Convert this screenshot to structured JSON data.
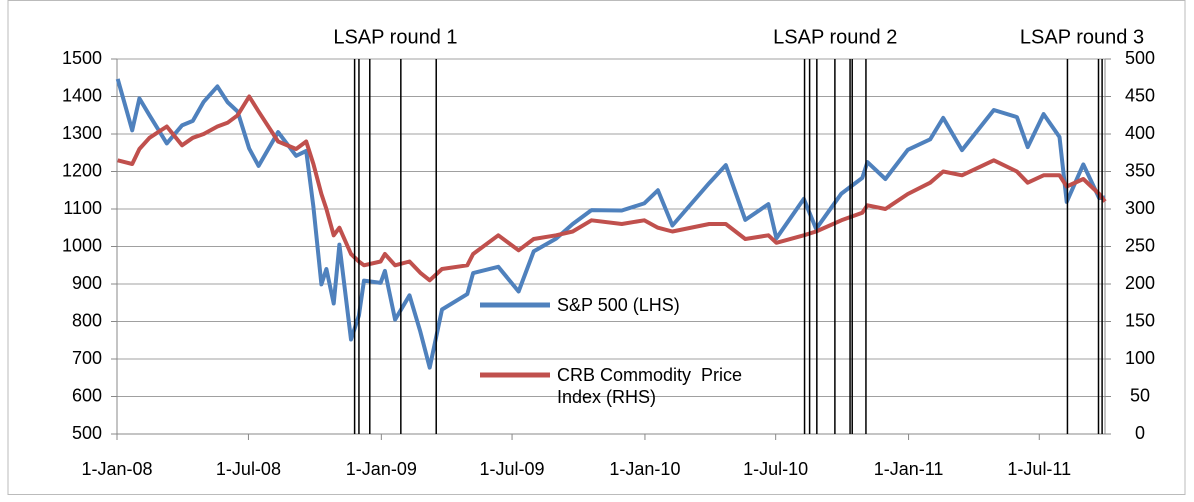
{
  "chart_data": {
    "type": "line",
    "annotations": [
      {
        "text": "LSAP round 1",
        "dates": [
          "2008-11-25",
          "2008-12-01",
          "2008-12-16",
          "2009-01-28",
          "2009-03-18"
        ]
      },
      {
        "text": "LSAP round 2",
        "dates": [
          "2010-08-10",
          "2010-08-17",
          "2010-08-27",
          "2010-09-21",
          "2010-10-12",
          "2010-10-15",
          "2010-11-03"
        ]
      },
      {
        "text": "LSAP round 3",
        "dates": [
          "2011-08-09",
          "2011-09-21",
          "2011-09-26"
        ]
      }
    ],
    "x": [
      "2008-01-02",
      "2008-01-22",
      "2008-02-01",
      "2008-02-15",
      "2008-03-10",
      "2008-03-31",
      "2008-04-15",
      "2008-04-30",
      "2008-05-19",
      "2008-06-02",
      "2008-06-16",
      "2008-07-02",
      "2008-07-15",
      "2008-08-11",
      "2008-09-05",
      "2008-09-19",
      "2008-09-29",
      "2008-10-10",
      "2008-10-17",
      "2008-10-27",
      "2008-11-04",
      "2008-11-20",
      "2008-12-01",
      "2008-12-08",
      "2008-12-31",
      "2009-01-06",
      "2009-01-20",
      "2009-02-09",
      "2009-02-24",
      "2009-03-09",
      "2009-03-26",
      "2009-04-30",
      "2009-05-08",
      "2009-06-12",
      "2009-07-10",
      "2009-07-31",
      "2009-08-31",
      "2009-09-23",
      "2009-10-19",
      "2009-11-30",
      "2009-12-31",
      "2010-01-19",
      "2010-02-08",
      "2010-03-31",
      "2010-04-23",
      "2010-05-20",
      "2010-06-21",
      "2010-07-02",
      "2010-08-09",
      "2010-08-26",
      "2010-09-30",
      "2010-10-29",
      "2010-11-05",
      "2010-11-30",
      "2010-12-31",
      "2011-01-31",
      "2011-02-18",
      "2011-03-16",
      "2011-04-29",
      "2011-05-31",
      "2011-06-15",
      "2011-07-07",
      "2011-07-29",
      "2011-08-08",
      "2011-08-31",
      "2011-09-22",
      "2011-09-30"
    ],
    "series": [
      {
        "name": "S&P 500 (LHS)",
        "color": "#4f81bd",
        "values": [
          1447,
          1310,
          1395,
          1350,
          1275,
          1323,
          1335,
          1386,
          1427,
          1385,
          1360,
          1261,
          1215,
          1305,
          1242,
          1255,
          1106,
          899,
          940,
          848,
          1005,
          752,
          816,
          909,
          903,
          935,
          805,
          870,
          773,
          677,
          832,
          873,
          929,
          946,
          880,
          987,
          1021,
          1060,
          1097,
          1096,
          1115,
          1150,
          1056,
          1169,
          1217,
          1071,
          1113,
          1022,
          1127,
          1047,
          1141,
          1183,
          1225,
          1180,
          1258,
          1286,
          1343,
          1257,
          1364,
          1345,
          1265,
          1353,
          1292,
          1119,
          1219,
          1129,
          1131
        ]
      },
      {
        "name": "CRB Commodity  Price Index (RHS)",
        "color": "#c0504d",
        "axis": "y2",
        "values": [
          365,
          360,
          380,
          395,
          410,
          385,
          395,
          400,
          410,
          415,
          425,
          450,
          430,
          390,
          380,
          390,
          360,
          320,
          300,
          265,
          275,
          240,
          230,
          225,
          230,
          240,
          225,
          230,
          215,
          205,
          220,
          225,
          240,
          265,
          245,
          260,
          265,
          270,
          285,
          280,
          285,
          275,
          270,
          280,
          280,
          260,
          265,
          255,
          265,
          270,
          285,
          295,
          305,
          300,
          320,
          335,
          350,
          345,
          365,
          350,
          335,
          345,
          345,
          330,
          340,
          320,
          310
        ]
      }
    ],
    "xlim": [
      "2008-01-01",
      "2011-09-30"
    ],
    "xticks": [
      {
        "value": "2008-01-01",
        "label": "1-Jan-08"
      },
      {
        "value": "2008-07-01",
        "label": "1-Jul-08"
      },
      {
        "value": "2009-01-01",
        "label": "1-Jan-09"
      },
      {
        "value": "2009-07-01",
        "label": "1-Jul-09"
      },
      {
        "value": "2010-01-01",
        "label": "1-Jan-10"
      },
      {
        "value": "2010-07-01",
        "label": "1-Jul-10"
      },
      {
        "value": "2011-01-01",
        "label": "1-Jan-11"
      },
      {
        "value": "2011-07-01",
        "label": "1-Jul-11"
      }
    ],
    "ylim": [
      500,
      1500
    ],
    "yticks": [
      500,
      600,
      700,
      800,
      900,
      1000,
      1100,
      1200,
      1300,
      1400,
      1500
    ],
    "y2lim": [
      0,
      500
    ],
    "y2ticks": [
      0,
      50,
      100,
      150,
      200,
      250,
      300,
      350,
      400,
      450,
      500
    ],
    "grid": true
  }
}
